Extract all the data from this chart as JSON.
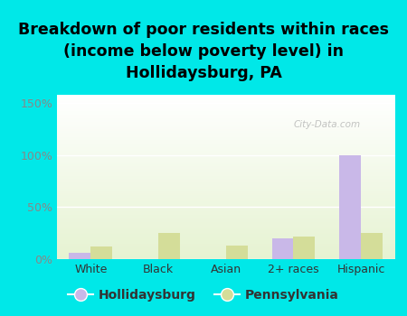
{
  "title": "Breakdown of poor residents within races\n(income below poverty level) in\nHollidaysburg, PA",
  "categories": [
    "White",
    "Black",
    "Asian",
    "2+ races",
    "Hispanic"
  ],
  "hollidaysburg": [
    0.06,
    0.0,
    0.0,
    0.2,
    1.0
  ],
  "pennsylvania": [
    0.12,
    0.25,
    0.13,
    0.22,
    0.25
  ],
  "color_hollidaysburg": "#c9b8e8",
  "color_pennsylvania": "#d4dd99",
  "background_outer": "#00e8e8",
  "yticks": [
    0.0,
    0.5,
    1.0,
    1.5
  ],
  "ytick_labels": [
    "0%",
    "50%",
    "100%",
    "150%"
  ],
  "ylim": [
    0,
    1.58
  ],
  "title_fontsize": 12.5,
  "legend_fontsize": 10,
  "tick_fontsize": 9,
  "bar_width": 0.32,
  "watermark": "City-Data.com",
  "ytick_color": "#888888",
  "xtick_color": "#333333"
}
